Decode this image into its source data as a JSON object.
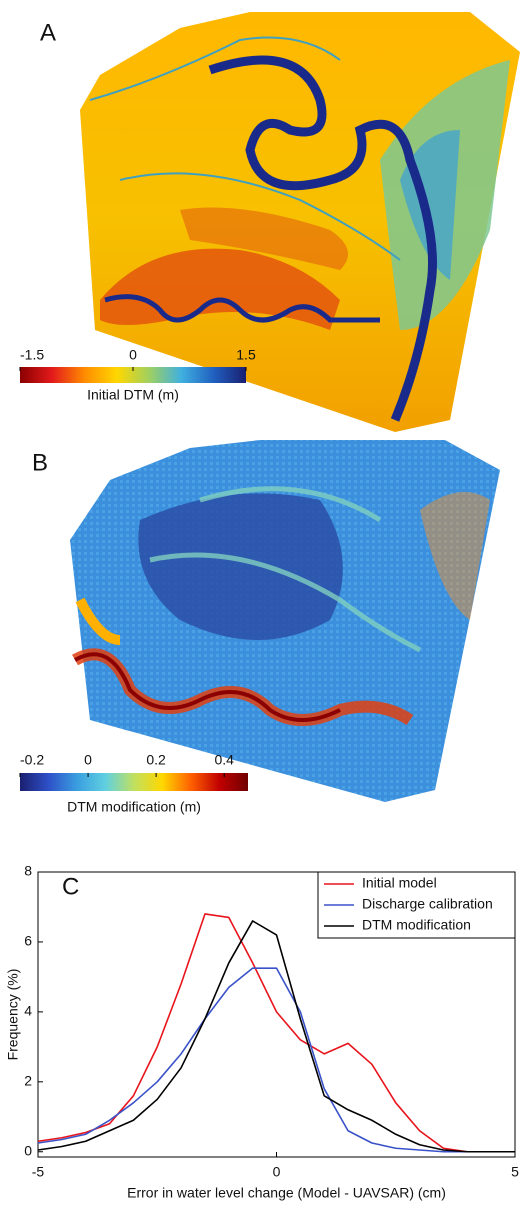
{
  "chart_data": [
    {
      "type": "map",
      "label": "A",
      "colorbar": {
        "title": "Initial DTM (m)",
        "lim": [
          -1.5,
          1.5
        ],
        "ticks": [
          -1.5,
          0,
          1.5
        ],
        "colors": [
          "#8b0000",
          "#e31a1c",
          "#ff8c00",
          "#ffd700",
          "#a0d060",
          "#40b0e0",
          "#2060c0",
          "#1a1f70"
        ]
      }
    },
    {
      "type": "map",
      "label": "B",
      "colorbar": {
        "title": "DTM modification (m)",
        "lim": [
          -0.2,
          0.47
        ],
        "ticks": [
          -0.2,
          0,
          0.2,
          0.4
        ],
        "colors": [
          "#1a1f70",
          "#2e50c8",
          "#3a9ee0",
          "#60d0e0",
          "#c0e060",
          "#ffd700",
          "#ff6000",
          "#c00000",
          "#700000"
        ]
      }
    },
    {
      "type": "line",
      "label": "C",
      "x_label": "Error in water level change  (Model - UAVSAR) (cm)",
      "y_label": "Frequency (%)",
      "xlim": [
        -5,
        5
      ],
      "ylim": [
        -0.15,
        8
      ],
      "xticks": [
        -5,
        0,
        5
      ],
      "yticks": [
        0,
        2,
        4,
        6,
        8
      ],
      "legend": "upper right",
      "x": [
        -5,
        -4.5,
        -4,
        -3.5,
        -3,
        -2.5,
        -2,
        -1.5,
        -1,
        -0.5,
        0,
        0.5,
        1,
        1.5,
        2,
        2.5,
        3,
        3.5,
        4,
        4.5,
        5
      ],
      "series": [
        {
          "name": "Initial model",
          "color": "#e8141c",
          "values": [
            0.3,
            0.4,
            0.55,
            0.8,
            1.6,
            3.0,
            4.8,
            6.8,
            6.7,
            5.4,
            4.0,
            3.2,
            2.8,
            3.1,
            2.5,
            1.4,
            0.6,
            0.1,
            0,
            0,
            0
          ]
        },
        {
          "name": "Discharge calibration",
          "color": "#3a52c8",
          "values": [
            0.25,
            0.35,
            0.5,
            0.9,
            1.4,
            2.0,
            2.8,
            3.8,
            4.7,
            5.25,
            5.25,
            4.0,
            1.8,
            0.6,
            0.25,
            0.1,
            0.05,
            0,
            0,
            0,
            0
          ]
        },
        {
          "name": "DTM modification",
          "color": "#000000",
          "values": [
            0.05,
            0.15,
            0.3,
            0.6,
            0.9,
            1.5,
            2.4,
            3.8,
            5.4,
            6.6,
            6.2,
            3.8,
            1.6,
            1.2,
            0.9,
            0.5,
            0.2,
            0.05,
            0,
            0,
            0
          ]
        }
      ]
    }
  ]
}
